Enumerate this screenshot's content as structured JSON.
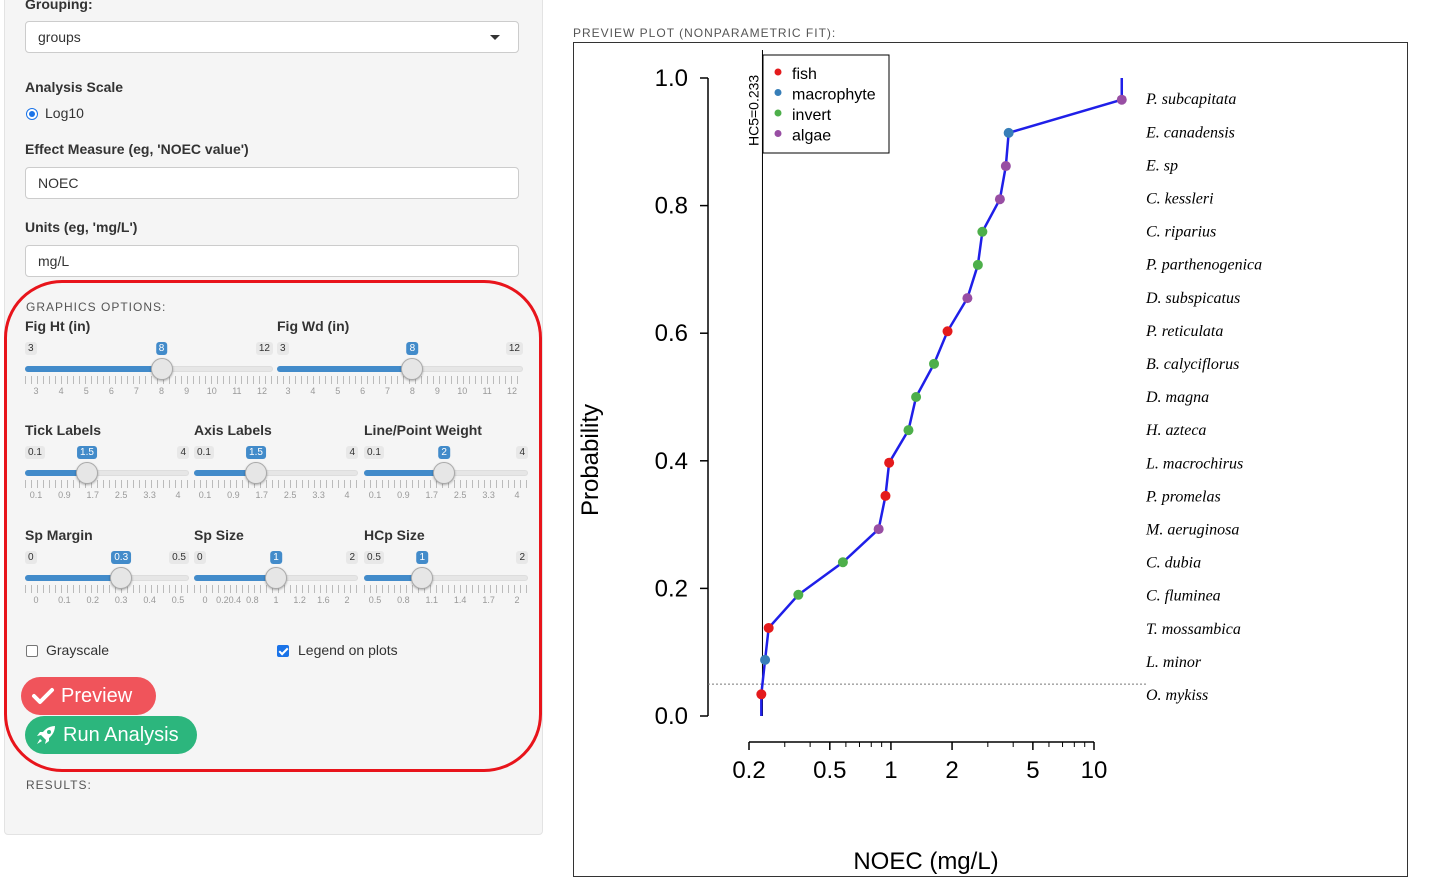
{
  "form": {
    "grouping_label": "Grouping:",
    "grouping_value": "groups",
    "scale_label": "Analysis Scale",
    "scale_option": "Log10",
    "effect_label": "Effect Measure (eg, 'NOEC value')",
    "effect_value": "NOEC",
    "units_label": "Units (eg, 'mg/L')",
    "units_value": "mg/L"
  },
  "graphics": {
    "section_title": "GRAPHICS OPTIONS:",
    "sliders": [
      {
        "label": "Fig Ht (in)",
        "min": 3,
        "max": 12,
        "value": 8,
        "min_text": "3",
        "max_text": "12",
        "value_text": "8",
        "ticks": [
          "3",
          "4",
          "5",
          "6",
          "7",
          "8",
          "9",
          "10",
          "11",
          "12"
        ]
      },
      {
        "label": "Fig Wd (in)",
        "min": 3,
        "max": 12,
        "value": 8,
        "min_text": "3",
        "max_text": "12",
        "value_text": "8",
        "ticks": [
          "3",
          "4",
          "5",
          "6",
          "7",
          "8",
          "9",
          "10",
          "11",
          "12"
        ]
      },
      {
        "label": "Tick Labels",
        "min": 0.1,
        "max": 4,
        "value": 1.5,
        "min_text": "0.1",
        "max_text": "4",
        "value_text": "1.5",
        "ticks": [
          "0.1",
          "0.9",
          "1.7",
          "2.5",
          "3.3",
          "4"
        ]
      },
      {
        "label": "Axis Labels",
        "min": 0.1,
        "max": 4,
        "value": 1.5,
        "min_text": "0.1",
        "max_text": "4",
        "value_text": "1.5",
        "ticks": [
          "0.1",
          "0.9",
          "1.7",
          "2.5",
          "3.3",
          "4"
        ]
      },
      {
        "label": "Line/Point Weight",
        "min": 0.1,
        "max": 4,
        "value": 2,
        "min_text": "0.1",
        "max_text": "4",
        "value_text": "2",
        "ticks": [
          "0.1",
          "0.9",
          "1.7",
          "2.5",
          "3.3",
          "4"
        ]
      },
      {
        "label": "Sp Margin",
        "min": 0,
        "max": 0.5,
        "value": 0.3,
        "min_text": "0",
        "max_text": "0.5",
        "value_text": "0.3",
        "ticks": [
          "0",
          "0.1",
          "0.2",
          "0.3",
          "0.4",
          "0.5"
        ]
      },
      {
        "label": "Sp Size",
        "min": 0,
        "max": 2,
        "value": 1,
        "min_text": "0",
        "max_text": "2",
        "value_text": "1",
        "ticks": [
          "0",
          "0.20.4",
          "0.8",
          "1",
          "1.2",
          "1.6",
          "2"
        ]
      },
      {
        "label": "HCp Size",
        "min": 0.5,
        "max": 2,
        "value": 1,
        "min_text": "0.5",
        "max_text": "2",
        "value_text": "1",
        "ticks": [
          "0.5",
          "0.8",
          "1.1",
          "1.4",
          "1.7",
          "2"
        ]
      }
    ],
    "grayscale_label": "Grayscale",
    "grayscale_checked": false,
    "legend_label": "Legend on plots",
    "legend_checked": true,
    "preview_button": "Preview",
    "run_button": "Run Analysis",
    "results_title": "RESULTS:",
    "preview_color": "#f0545b",
    "run_color": "#2cb67d"
  },
  "plot_title": "PREVIEW PLOT (NONPARAMETRIC FIT):",
  "chart_data": {
    "type": "scatter",
    "title": "",
    "xlabel": "NOEC (mg/L)",
    "ylabel": "Probability",
    "x_scale": "log",
    "xticks": [
      0.2,
      0.5,
      1,
      2,
      5,
      10
    ],
    "xtick_labels": [
      "0.2",
      "0.5",
      "1",
      "2",
      "5",
      "10"
    ],
    "yticks": [
      0.0,
      0.2,
      0.4,
      0.6,
      0.8,
      1.0
    ],
    "ytick_labels": [
      "0.0",
      "0.2",
      "0.4",
      "0.6",
      "0.8",
      "1.0"
    ],
    "ylim": [
      0,
      1
    ],
    "xlim": [
      0.2,
      15
    ],
    "hc5_label": "HC5=0.233",
    "hc5_value": 0.233,
    "hc5_probability": 0.05,
    "legend": {
      "position": "top-left",
      "entries": [
        {
          "name": "fish",
          "color": "#e41a1c"
        },
        {
          "name": "macrophyte",
          "color": "#377eb8"
        },
        {
          "name": "invert",
          "color": "#4daf4a"
        },
        {
          "name": "algae",
          "color": "#984ea3"
        }
      ]
    },
    "line_color": "#1f1fe8",
    "points": [
      {
        "species": "O. mykiss",
        "group": "fish",
        "x": 0.23,
        "y": 0.034
      },
      {
        "species": "L. minor",
        "group": "macrophyte",
        "x": 0.24,
        "y": 0.088
      },
      {
        "species": "T. mossambica",
        "group": "fish",
        "x": 0.25,
        "y": 0.138
      },
      {
        "species": "C. fluminea",
        "group": "invert",
        "x": 0.35,
        "y": 0.19
      },
      {
        "species": "C. dubia",
        "group": "invert",
        "x": 0.58,
        "y": 0.241
      },
      {
        "species": "M. aeruginosa",
        "group": "algae",
        "x": 0.87,
        "y": 0.293
      },
      {
        "species": "P. promelas",
        "group": "fish",
        "x": 0.94,
        "y": 0.345
      },
      {
        "species": "L. macrochirus",
        "group": "fish",
        "x": 0.98,
        "y": 0.397
      },
      {
        "species": "H. azteca",
        "group": "invert",
        "x": 1.22,
        "y": 0.448
      },
      {
        "species": "D. magna",
        "group": "invert",
        "x": 1.33,
        "y": 0.5
      },
      {
        "species": "B. calyciflorus",
        "group": "invert",
        "x": 1.63,
        "y": 0.552
      },
      {
        "species": "P. reticulata",
        "group": "fish",
        "x": 1.9,
        "y": 0.603
      },
      {
        "species": "D. subspicatus",
        "group": "algae",
        "x": 2.38,
        "y": 0.655
      },
      {
        "species": "P. parthenogenica",
        "group": "invert",
        "x": 2.68,
        "y": 0.707
      },
      {
        "species": "C. riparius",
        "group": "invert",
        "x": 2.82,
        "y": 0.759
      },
      {
        "species": "C. kessleri",
        "group": "algae",
        "x": 3.44,
        "y": 0.81
      },
      {
        "species": "E. sp",
        "group": "algae",
        "x": 3.68,
        "y": 0.862
      },
      {
        "species": "E. canadensis",
        "group": "macrophyte",
        "x": 3.8,
        "y": 0.914
      },
      {
        "species": "P. subcapitata",
        "group": "algae",
        "x": 13.7,
        "y": 0.966
      }
    ]
  }
}
